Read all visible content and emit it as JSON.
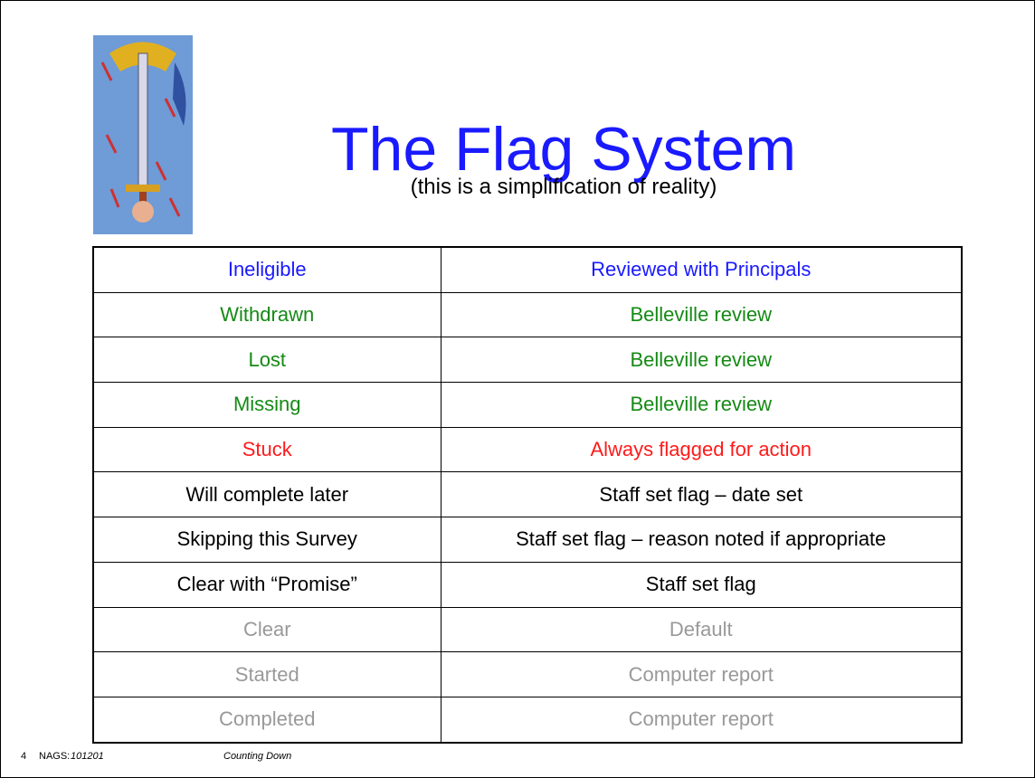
{
  "header": {
    "title": "The Flag System",
    "subtitle": "(this is a simplification of reality)"
  },
  "table": {
    "rows": [
      {
        "cells": [
          "Ineligible",
          "Reviewed with Principals"
        ],
        "color": "#1a1aff"
      },
      {
        "cells": [
          "Withdrawn",
          "Belleville review"
        ],
        "color": "#158a15"
      },
      {
        "cells": [
          "Lost",
          "Belleville review"
        ],
        "color": "#158a15"
      },
      {
        "cells": [
          "Missing",
          "Belleville review"
        ],
        "color": "#158a15"
      },
      {
        "cells": [
          "Stuck",
          "Always flagged for action"
        ],
        "color": "#ff1a1a"
      },
      {
        "cells": [
          "Will complete later",
          "Staff set flag – date set"
        ],
        "color": "#000000"
      },
      {
        "cells": [
          "Skipping this Survey",
          "Staff set flag – reason noted if appropriate"
        ],
        "color": "#000000"
      },
      {
        "cells": [
          "Clear with “Promise”",
          "Staff set flag"
        ],
        "color": "#000000"
      },
      {
        "cells": [
          "Clear",
          "Default"
        ],
        "color": "#999999"
      },
      {
        "cells": [
          "Started",
          "Computer report"
        ],
        "color": "#999999"
      },
      {
        "cells": [
          "Completed",
          "Computer report"
        ],
        "color": "#999999"
      }
    ]
  },
  "footer": {
    "page": "4",
    "label": "NAGS:",
    "code": "101201",
    "note": "Counting Down"
  }
}
